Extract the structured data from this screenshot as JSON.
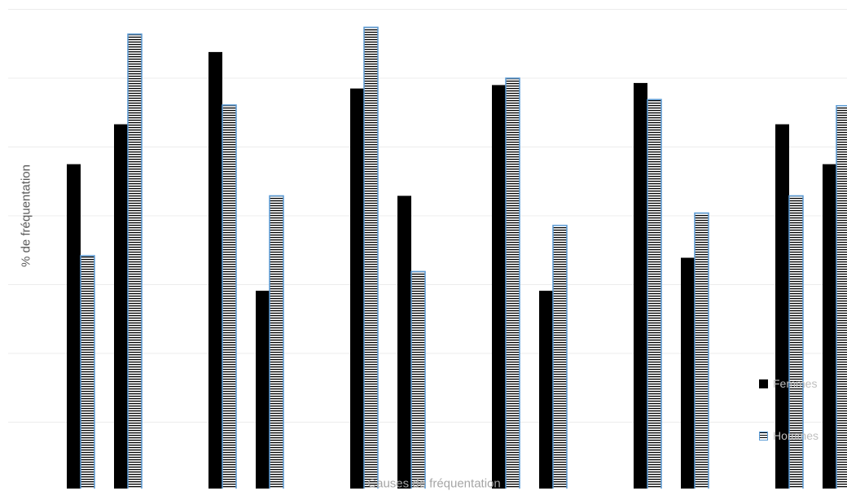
{
  "chart_data": {
    "type": "bar",
    "title": "",
    "xlabel": "Causes de fréquentation",
    "ylabel": "% de fréquentation",
    "categories": [
      "",
      "",
      "",
      "",
      "",
      "",
      "",
      "",
      "",
      "",
      "",
      "",
      "",
      "",
      "",
      "",
      ""
    ],
    "series": [
      {
        "name": "Femmes",
        "values": [
          47.5,
          53.3,
          null,
          63.8,
          29.1,
          null,
          58.5,
          42.9,
          null,
          59.0,
          29.1,
          null,
          59.3,
          33.9,
          null,
          53.3,
          47.5
        ]
      },
      {
        "name": "Hommes",
        "values": [
          34.2,
          66.4,
          null,
          56.1,
          42.9,
          null,
          67.4,
          31.9,
          null,
          60.0,
          38.6,
          null,
          56.9,
          40.4,
          null,
          42.9,
          56.0
        ]
      }
    ],
    "ylim": [
      0,
      70
    ],
    "grid": true,
    "legend_position": "bottom-right",
    "colors": {
      "femmes": "#000000",
      "hommes_outline": "#5b9bd5",
      "grid": "#ececec"
    }
  }
}
